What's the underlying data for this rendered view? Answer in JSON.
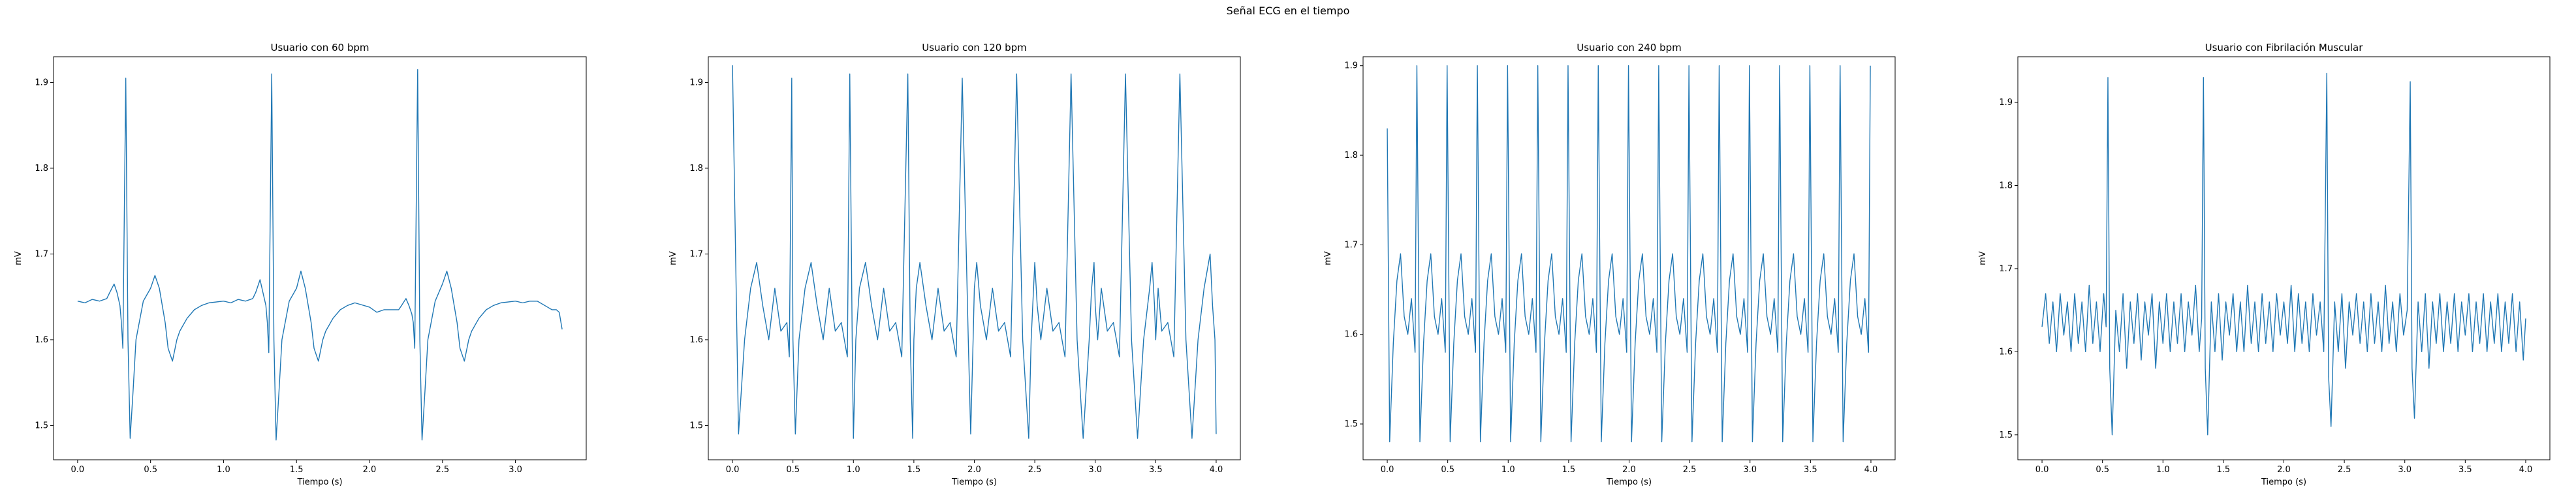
{
  "figure": {
    "suptitle": "Señal ECG en el tiempo",
    "line_color": "#1f77b4"
  },
  "chart_data": [
    {
      "type": "line",
      "title": "Usuario con 60 bpm",
      "xlabel": "Tiempo (s)",
      "ylabel": "mV",
      "xlim": [
        -0.165,
        3.485
      ],
      "ylim": [
        1.46,
        1.93
      ],
      "xticks": [
        0.0,
        0.5,
        1.0,
        1.5,
        2.0,
        2.5,
        3.0
      ],
      "yticks": [
        1.5,
        1.6,
        1.7,
        1.8,
        1.9
      ],
      "x": [
        0.0,
        0.05,
        0.1,
        0.15,
        0.2,
        0.22,
        0.25,
        0.27,
        0.29,
        0.3,
        0.31,
        0.33,
        0.345,
        0.36,
        0.38,
        0.4,
        0.45,
        0.5,
        0.53,
        0.56,
        0.6,
        0.62,
        0.65,
        0.68,
        0.7,
        0.75,
        0.8,
        0.85,
        0.9,
        1.0,
        1.05,
        1.1,
        1.15,
        1.2,
        1.22,
        1.25,
        1.27,
        1.29,
        1.3,
        1.31,
        1.33,
        1.345,
        1.36,
        1.38,
        1.4,
        1.45,
        1.5,
        1.53,
        1.56,
        1.6,
        1.62,
        1.65,
        1.68,
        1.7,
        1.75,
        1.8,
        1.85,
        1.9,
        2.0,
        2.05,
        2.1,
        2.15,
        2.2,
        2.22,
        2.25,
        2.27,
        2.29,
        2.3,
        2.31,
        2.33,
        2.345,
        2.36,
        2.38,
        2.4,
        2.45,
        2.5,
        2.53,
        2.56,
        2.6,
        2.62,
        2.65,
        2.68,
        2.7,
        2.75,
        2.8,
        2.85,
        2.9,
        3.0,
        3.05,
        3.1,
        3.15,
        3.2,
        3.22,
        3.25,
        3.28,
        3.3,
        3.32
      ],
      "y": [
        1.645,
        1.643,
        1.647,
        1.645,
        1.648,
        1.655,
        1.665,
        1.655,
        1.64,
        1.62,
        1.59,
        1.905,
        1.6,
        1.485,
        1.54,
        1.6,
        1.645,
        1.66,
        1.675,
        1.66,
        1.62,
        1.59,
        1.575,
        1.6,
        1.61,
        1.625,
        1.635,
        1.64,
        1.643,
        1.645,
        1.643,
        1.647,
        1.645,
        1.648,
        1.655,
        1.67,
        1.655,
        1.64,
        1.62,
        1.585,
        1.91,
        1.6,
        1.483,
        1.54,
        1.6,
        1.645,
        1.66,
        1.68,
        1.66,
        1.62,
        1.59,
        1.575,
        1.6,
        1.61,
        1.625,
        1.635,
        1.64,
        1.643,
        1.638,
        1.632,
        1.635,
        1.635,
        1.635,
        1.64,
        1.648,
        1.64,
        1.63,
        1.62,
        1.59,
        1.915,
        1.6,
        1.483,
        1.54,
        1.6,
        1.645,
        1.665,
        1.68,
        1.66,
        1.62,
        1.59,
        1.575,
        1.6,
        1.61,
        1.625,
        1.635,
        1.64,
        1.643,
        1.645,
        1.643,
        1.645,
        1.645,
        1.64,
        1.638,
        1.635,
        1.635,
        1.632,
        1.612
      ]
    },
    {
      "type": "line",
      "title": "Usuario con 120 bpm",
      "xlabel": "Tiempo (s)",
      "ylabel": "mV",
      "xlim": [
        -0.2,
        4.2
      ],
      "ylim": [
        1.46,
        1.93
      ],
      "xticks": [
        0.0,
        0.5,
        1.0,
        1.5,
        2.0,
        2.5,
        3.0,
        3.5,
        4.0
      ],
      "yticks": [
        1.5,
        1.6,
        1.7,
        1.8,
        1.9
      ],
      "x": [
        0.0,
        0.05,
        0.1,
        0.15,
        0.2,
        0.25,
        0.3,
        0.35,
        0.4,
        0.45,
        0.47,
        0.49,
        0.5,
        0.52,
        0.55,
        0.6,
        0.65,
        0.7,
        0.75,
        0.8,
        0.85,
        0.9,
        0.95,
        0.97,
        0.99,
        1.0,
        1.02,
        1.05,
        1.1,
        1.15,
        1.2,
        1.25,
        1.3,
        1.35,
        1.4,
        1.45,
        1.47,
        1.49,
        1.5,
        1.52,
        1.55,
        1.6,
        1.65,
        1.7,
        1.75,
        1.8,
        1.85,
        1.9,
        1.95,
        1.97,
        1.99,
        2.0,
        2.02,
        2.05,
        2.1,
        2.15,
        2.2,
        2.25,
        2.3,
        2.35,
        2.4,
        2.45,
        2.47,
        2.49,
        2.5,
        2.52,
        2.55,
        2.6,
        2.65,
        2.7,
        2.75,
        2.8,
        2.85,
        2.9,
        2.95,
        2.97,
        2.99,
        3.0,
        3.02,
        3.05,
        3.1,
        3.15,
        3.2,
        3.25,
        3.3,
        3.35,
        3.4,
        3.45,
        3.47,
        3.49,
        3.5,
        3.52,
        3.55,
        3.6,
        3.65,
        3.7,
        3.75,
        3.8,
        3.85,
        3.9,
        3.95,
        3.97,
        3.99,
        4.0
      ],
      "y": [
        1.92,
        1.49,
        1.6,
        1.66,
        1.69,
        1.64,
        1.6,
        1.66,
        1.61,
        1.62,
        1.58,
        1.905,
        1.6,
        1.49,
        1.6,
        1.66,
        1.69,
        1.64,
        1.6,
        1.66,
        1.61,
        1.62,
        1.58,
        1.91,
        1.6,
        1.485,
        1.6,
        1.66,
        1.69,
        1.64,
        1.6,
        1.66,
        1.61,
        1.62,
        1.58,
        1.91,
        1.6,
        1.485,
        1.6,
        1.66,
        1.69,
        1.64,
        1.6,
        1.66,
        1.61,
        1.62,
        1.58,
        1.905,
        1.6,
        1.49,
        1.6,
        1.66,
        1.69,
        1.64,
        1.6,
        1.66,
        1.61,
        1.62,
        1.58,
        1.91,
        1.6,
        1.485,
        1.6,
        1.66,
        1.69,
        1.64,
        1.6,
        1.66,
        1.61,
        1.62,
        1.58,
        1.91,
        1.6,
        1.485,
        1.6,
        1.66,
        1.69,
        1.64,
        1.6,
        1.66,
        1.61,
        1.62,
        1.58,
        1.91,
        1.6,
        1.485,
        1.6,
        1.66,
        1.69,
        1.64,
        1.6,
        1.66,
        1.61,
        1.62,
        1.58,
        1.91,
        1.6,
        1.485,
        1.6,
        1.66,
        1.7,
        1.64,
        1.6,
        1.49
      ]
    },
    {
      "type": "line",
      "title": "Usuario con 240 bpm",
      "xlabel": "Tiempo (s)",
      "ylabel": "mV",
      "xlim": [
        -0.2,
        4.2
      ],
      "ylim": [
        1.46,
        1.91
      ],
      "xticks": [
        0.0,
        0.5,
        1.0,
        1.5,
        2.0,
        2.5,
        3.0,
        3.5,
        4.0
      ],
      "yticks": [
        1.5,
        1.6,
        1.7,
        1.8,
        1.9
      ],
      "x": [
        0.0,
        0.02,
        0.05,
        0.08,
        0.11,
        0.14,
        0.17,
        0.2,
        0.22,
        0.23,
        0.245,
        0.27,
        0.3,
        0.33,
        0.36,
        0.39,
        0.42,
        0.45,
        0.47,
        0.48,
        0.495,
        0.52,
        0.55,
        0.58,
        0.61,
        0.64,
        0.67,
        0.7,
        0.72,
        0.73,
        0.745,
        0.77,
        0.8,
        0.83,
        0.86,
        0.89,
        0.92,
        0.95,
        0.97,
        0.98,
        0.995,
        1.02,
        1.05,
        1.08,
        1.11,
        1.14,
        1.17,
        1.2,
        1.22,
        1.23,
        1.245,
        1.27,
        1.3,
        1.33,
        1.36,
        1.39,
        1.42,
        1.45,
        1.47,
        1.48,
        1.495,
        1.52,
        1.55,
        1.58,
        1.61,
        1.64,
        1.67,
        1.7,
        1.72,
        1.73,
        1.745,
        1.77,
        1.8,
        1.83,
        1.86,
        1.89,
        1.92,
        1.95,
        1.97,
        1.98,
        1.995,
        2.02,
        2.05,
        2.08,
        2.11,
        2.14,
        2.17,
        2.2,
        2.22,
        2.23,
        2.245,
        2.27,
        2.3,
        2.33,
        2.36,
        2.39,
        2.42,
        2.45,
        2.47,
        2.48,
        2.495,
        2.52,
        2.55,
        2.58,
        2.61,
        2.64,
        2.67,
        2.7,
        2.72,
        2.73,
        2.745,
        2.77,
        2.8,
        2.83,
        2.86,
        2.89,
        2.92,
        2.95,
        2.97,
        2.98,
        2.995,
        3.02,
        3.05,
        3.08,
        3.11,
        3.14,
        3.17,
        3.2,
        3.22,
        3.23,
        3.245,
        3.27,
        3.3,
        3.33,
        3.36,
        3.39,
        3.42,
        3.45,
        3.47,
        3.48,
        3.495,
        3.52,
        3.55,
        3.58,
        3.61,
        3.64,
        3.67,
        3.7,
        3.72,
        3.73,
        3.745,
        3.77,
        3.8,
        3.83,
        3.86,
        3.89,
        3.92,
        3.95,
        3.97,
        3.98,
        3.995
      ],
      "y": [
        1.83,
        1.48,
        1.59,
        1.66,
        1.69,
        1.62,
        1.6,
        1.64,
        1.6,
        1.58,
        1.9,
        1.48,
        1.59,
        1.66,
        1.69,
        1.62,
        1.6,
        1.64,
        1.6,
        1.58,
        1.9,
        1.48,
        1.59,
        1.66,
        1.69,
        1.62,
        1.6,
        1.64,
        1.6,
        1.58,
        1.9,
        1.48,
        1.59,
        1.66,
        1.69,
        1.62,
        1.6,
        1.64,
        1.6,
        1.58,
        1.9,
        1.48,
        1.59,
        1.66,
        1.69,
        1.62,
        1.6,
        1.64,
        1.6,
        1.58,
        1.9,
        1.48,
        1.59,
        1.66,
        1.69,
        1.62,
        1.6,
        1.64,
        1.6,
        1.58,
        1.9,
        1.48,
        1.59,
        1.66,
        1.69,
        1.62,
        1.6,
        1.64,
        1.6,
        1.58,
        1.9,
        1.48,
        1.59,
        1.66,
        1.69,
        1.62,
        1.6,
        1.64,
        1.6,
        1.58,
        1.9,
        1.48,
        1.59,
        1.66,
        1.69,
        1.62,
        1.6,
        1.64,
        1.6,
        1.58,
        1.9,
        1.48,
        1.59,
        1.66,
        1.69,
        1.62,
        1.6,
        1.64,
        1.6,
        1.58,
        1.9,
        1.48,
        1.59,
        1.66,
        1.69,
        1.62,
        1.6,
        1.64,
        1.6,
        1.58,
        1.9,
        1.48,
        1.59,
        1.66,
        1.69,
        1.62,
        1.6,
        1.64,
        1.6,
        1.58,
        1.9,
        1.48,
        1.59,
        1.66,
        1.69,
        1.62,
        1.6,
        1.64,
        1.6,
        1.58,
        1.9,
        1.48,
        1.59,
        1.66,
        1.69,
        1.62,
        1.6,
        1.64,
        1.6,
        1.58,
        1.9,
        1.48,
        1.59,
        1.66,
        1.69,
        1.62,
        1.6,
        1.64,
        1.6,
        1.58,
        1.9,
        1.48,
        1.59,
        1.66,
        1.69,
        1.62,
        1.6,
        1.64,
        1.6,
        1.58,
        1.9
      ]
    },
    {
      "type": "line",
      "title": "Usuario con Fibrilación Muscular",
      "xlabel": "Tiempo (s)",
      "ylabel": "mV",
      "xlim": [
        -0.2,
        4.2
      ],
      "ylim": [
        1.47,
        1.955
      ],
      "xticks": [
        0.0,
        0.5,
        1.0,
        1.5,
        2.0,
        2.5,
        3.0,
        3.5,
        4.0
      ],
      "yticks": [
        1.5,
        1.6,
        1.7,
        1.8,
        1.9
      ],
      "x": [
        0.0,
        0.03,
        0.06,
        0.09,
        0.12,
        0.15,
        0.18,
        0.21,
        0.24,
        0.27,
        0.3,
        0.33,
        0.36,
        0.39,
        0.42,
        0.45,
        0.48,
        0.51,
        0.53,
        0.545,
        0.56,
        0.58,
        0.61,
        0.64,
        0.67,
        0.7,
        0.73,
        0.76,
        0.79,
        0.82,
        0.85,
        0.88,
        0.91,
        0.94,
        0.97,
        1.0,
        1.03,
        1.06,
        1.09,
        1.12,
        1.15,
        1.18,
        1.21,
        1.24,
        1.27,
        1.3,
        1.32,
        1.335,
        1.35,
        1.37,
        1.4,
        1.43,
        1.46,
        1.49,
        1.52,
        1.55,
        1.58,
        1.61,
        1.64,
        1.67,
        1.7,
        1.73,
        1.76,
        1.79,
        1.82,
        1.85,
        1.88,
        1.91,
        1.94,
        1.97,
        2.0,
        2.03,
        2.06,
        2.09,
        2.12,
        2.15,
        2.18,
        2.21,
        2.24,
        2.27,
        2.3,
        2.33,
        2.355,
        2.37,
        2.39,
        2.42,
        2.45,
        2.48,
        2.51,
        2.54,
        2.57,
        2.6,
        2.63,
        2.66,
        2.69,
        2.72,
        2.75,
        2.78,
        2.81,
        2.84,
        2.87,
        2.9,
        2.93,
        2.96,
        2.99,
        3.02,
        3.045,
        3.06,
        3.08,
        3.11,
        3.14,
        3.17,
        3.2,
        3.23,
        3.26,
        3.29,
        3.32,
        3.35,
        3.38,
        3.41,
        3.44,
        3.47,
        3.5,
        3.53,
        3.56,
        3.59,
        3.62,
        3.65,
        3.68,
        3.71,
        3.74,
        3.77,
        3.8,
        3.83,
        3.86,
        3.89,
        3.92,
        3.95,
        3.98,
        4.0
      ],
      "y": [
        1.63,
        1.67,
        1.61,
        1.66,
        1.6,
        1.67,
        1.62,
        1.66,
        1.6,
        1.67,
        1.61,
        1.66,
        1.6,
        1.68,
        1.61,
        1.66,
        1.6,
        1.67,
        1.63,
        1.93,
        1.58,
        1.5,
        1.65,
        1.6,
        1.67,
        1.58,
        1.66,
        1.61,
        1.67,
        1.59,
        1.66,
        1.62,
        1.67,
        1.58,
        1.66,
        1.61,
        1.67,
        1.6,
        1.66,
        1.61,
        1.67,
        1.6,
        1.66,
        1.62,
        1.68,
        1.6,
        1.64,
        1.93,
        1.58,
        1.5,
        1.66,
        1.6,
        1.67,
        1.59,
        1.66,
        1.62,
        1.67,
        1.6,
        1.66,
        1.6,
        1.68,
        1.61,
        1.66,
        1.6,
        1.67,
        1.61,
        1.66,
        1.6,
        1.67,
        1.62,
        1.66,
        1.61,
        1.68,
        1.6,
        1.67,
        1.61,
        1.66,
        1.6,
        1.67,
        1.62,
        1.66,
        1.6,
        1.935,
        1.57,
        1.51,
        1.66,
        1.6,
        1.67,
        1.58,
        1.66,
        1.62,
        1.67,
        1.61,
        1.66,
        1.6,
        1.67,
        1.61,
        1.66,
        1.6,
        1.68,
        1.61,
        1.66,
        1.6,
        1.67,
        1.62,
        1.65,
        1.925,
        1.58,
        1.52,
        1.66,
        1.6,
        1.67,
        1.58,
        1.66,
        1.61,
        1.67,
        1.6,
        1.66,
        1.61,
        1.67,
        1.6,
        1.66,
        1.62,
        1.67,
        1.6,
        1.66,
        1.61,
        1.67,
        1.6,
        1.66,
        1.61,
        1.67,
        1.6,
        1.66,
        1.61,
        1.67,
        1.6,
        1.66,
        1.59,
        1.64
      ]
    }
  ]
}
